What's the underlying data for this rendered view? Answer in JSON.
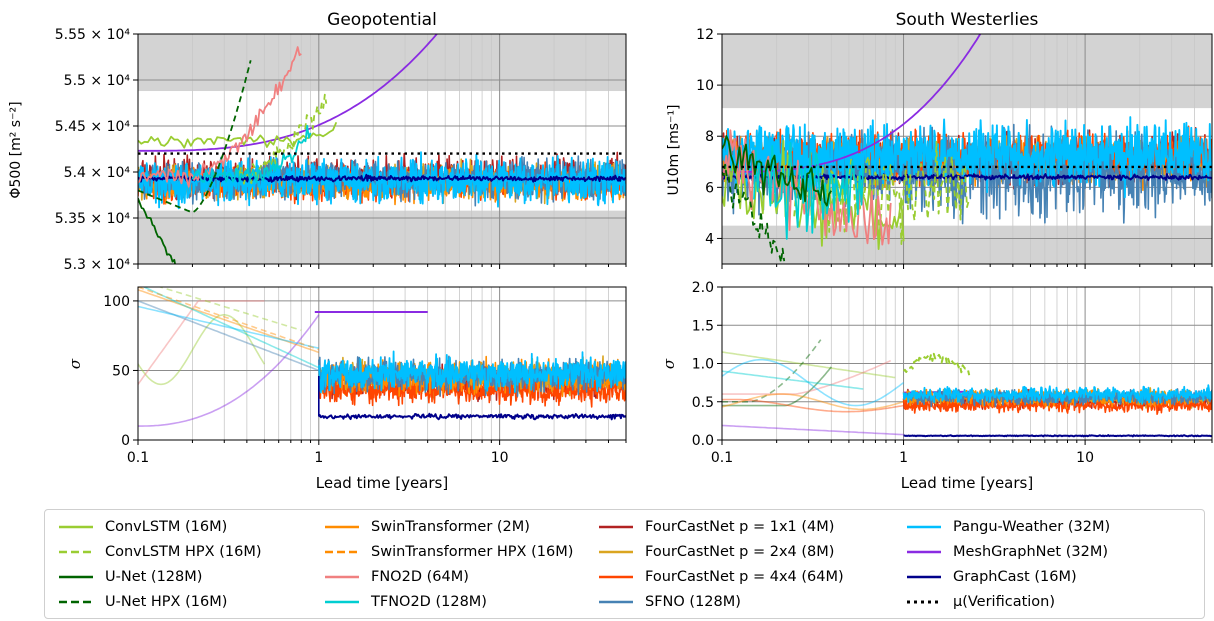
{
  "chart_data": [
    {
      "panel": "top-left",
      "type": "line",
      "title": "Geopotential",
      "ylabel": "Φ500 [m² s⁻²]",
      "xscale": "log",
      "xlim": [
        0.1,
        50
      ],
      "ylim": [
        53000,
        55500
      ],
      "yticks": [
        "5.3 × 10⁴",
        "5.35 × 10⁴",
        "5.4 × 10⁴",
        "5.45 × 10⁴",
        "5.5 × 10⁴",
        "5.55 × 10⁴"
      ],
      "shaded_bands": [
        [
          53000,
          53580
        ],
        [
          54880,
          55500
        ]
      ],
      "verification_mean": 54200,
      "grid": true
    },
    {
      "panel": "top-right",
      "type": "line",
      "title": "South Westerlies",
      "ylabel": "U10m [ms⁻¹]",
      "xscale": "log",
      "xlim": [
        0.1,
        50
      ],
      "ylim": [
        3,
        12
      ],
      "yticks": [
        "4",
        "6",
        "8",
        "10",
        "12"
      ],
      "shaded_bands": [
        [
          3,
          4.5
        ],
        [
          9.1,
          12
        ]
      ],
      "verification_mean": 6.8,
      "grid": true
    },
    {
      "panel": "bottom-left",
      "type": "line",
      "ylabel": "σ",
      "xlabel": "Lead time [years]",
      "xscale": "log",
      "xlim": [
        0.1,
        50
      ],
      "ylim": [
        0,
        110
      ],
      "yticks": [
        "0",
        "50",
        "100"
      ],
      "xticks": [
        "0.1",
        "1",
        "10"
      ],
      "grid": true
    },
    {
      "panel": "bottom-right",
      "type": "line",
      "ylabel": "σ",
      "xlabel": "Lead time [years]",
      "xscale": "log",
      "xlim": [
        0.1,
        50
      ],
      "ylim": [
        0,
        2.0
      ],
      "yticks": [
        "0.0",
        "0.5",
        "1.0",
        "1.5",
        "2.0"
      ],
      "xticks": [
        "0.1",
        "1",
        "10"
      ],
      "grid": true
    }
  ],
  "legend": [
    {
      "label": "ConvLSTM (16M)",
      "color": "#9acd32",
      "dash": "solid"
    },
    {
      "label": "ConvLSTM HPX (16M)",
      "color": "#9acd32",
      "dash": "dashed"
    },
    {
      "label": "U-Net (128M)",
      "color": "#006400",
      "dash": "solid"
    },
    {
      "label": "U-Net HPX (16M)",
      "color": "#006400",
      "dash": "dashed"
    },
    {
      "label": "SwinTransformer (2M)",
      "color": "#ff8c00",
      "dash": "solid"
    },
    {
      "label": "SwinTransformer HPX (16M)",
      "color": "#ff8c00",
      "dash": "dashed"
    },
    {
      "label": "FNO2D (64M)",
      "color": "#f08080",
      "dash": "solid"
    },
    {
      "label": "TFNO2D (128M)",
      "color": "#00ced1",
      "dash": "solid"
    },
    {
      "label": "FourCastNet p = 1x1 (4M)",
      "color": "#b22222",
      "dash": "solid"
    },
    {
      "label": "FourCastNet p = 2x4 (8M)",
      "color": "#daa520",
      "dash": "solid"
    },
    {
      "label": "FourCastNet p = 4x4 (64M)",
      "color": "#ff4500",
      "dash": "solid"
    },
    {
      "label": "SFNO (128M)",
      "color": "#4682b4",
      "dash": "solid"
    },
    {
      "label": "Pangu-Weather (32M)",
      "color": "#00bfff",
      "dash": "solid"
    },
    {
      "label": "MeshGraphNet (32M)",
      "color": "#8a2be2",
      "dash": "solid"
    },
    {
      "label": "GraphCast (16M)",
      "color": "#00008b",
      "dash": "solid"
    },
    {
      "label": "μ(Verification)",
      "color": "#000000",
      "dash": "dotted"
    }
  ]
}
